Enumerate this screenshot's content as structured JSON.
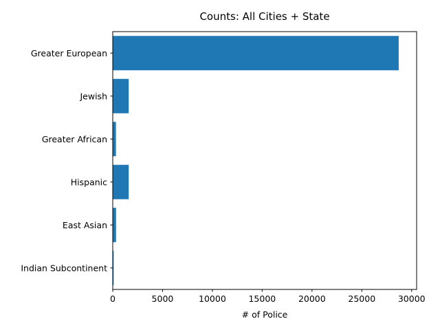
{
  "chart_data": {
    "type": "bar",
    "orientation": "horizontal",
    "title": "Counts: All Cities + State",
    "xlabel": "# of Police",
    "ylabel": "",
    "categories": [
      "Greater European",
      "Jewish",
      "Greater African",
      "Hispanic",
      "East Asian",
      "Indian Subcontinent"
    ],
    "values": [
      28700,
      1600,
      320,
      1600,
      330,
      90
    ],
    "xlim": [
      0,
      30500
    ],
    "xticks": [
      0,
      5000,
      10000,
      15000,
      20000,
      25000,
      30000
    ],
    "grid": false,
    "legend": "none",
    "bar_color": "#1f77b4"
  }
}
